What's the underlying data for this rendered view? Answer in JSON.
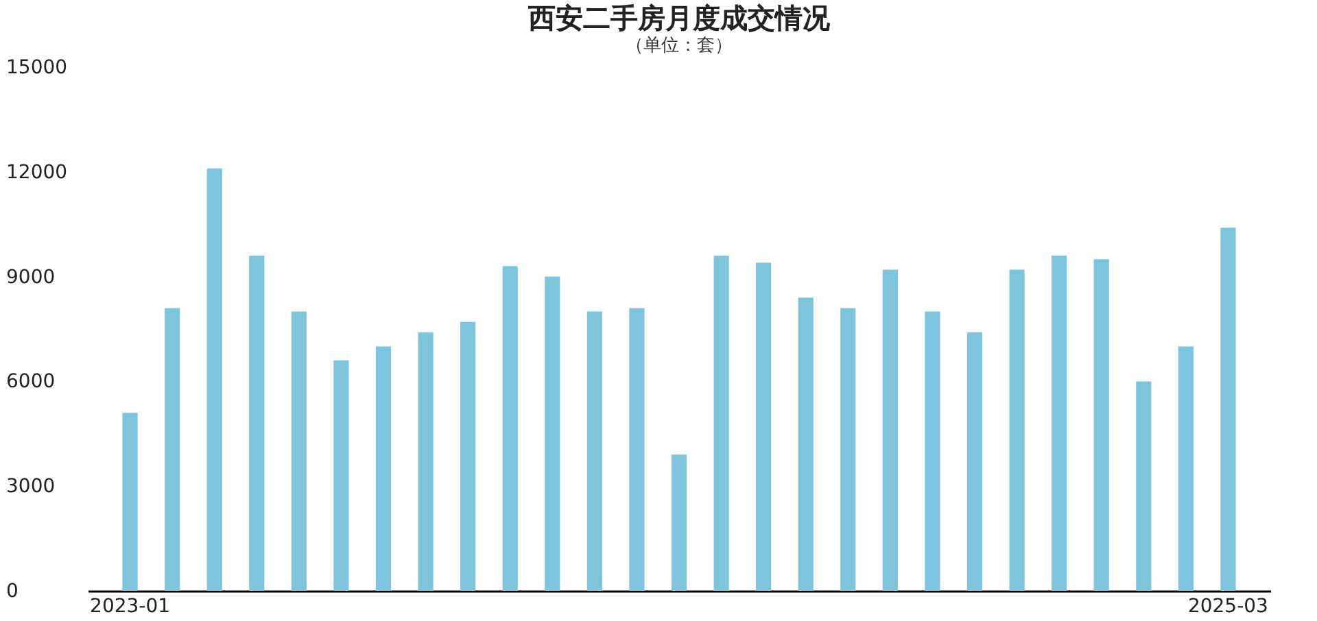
{
  "chart_data": {
    "type": "bar",
    "title": "西安二手房月度成交情况",
    "subtitle": "（单位：套）",
    "categories": [
      "2023-01",
      null,
      null,
      null,
      null,
      null,
      null,
      null,
      null,
      null,
      null,
      null,
      null,
      null,
      null,
      null,
      null,
      null,
      null,
      null,
      null,
      null,
      null,
      null,
      null,
      null,
      "2025-03"
    ],
    "values": [
      5100,
      8100,
      12100,
      9600,
      8000,
      6600,
      7000,
      7400,
      7700,
      9300,
      9000,
      8000,
      8100,
      3900,
      9600,
      9400,
      8400,
      8100,
      9200,
      8000,
      7400,
      9200,
      9600,
      9500,
      6000,
      7000,
      10400
    ],
    "color": "#7ec4dc",
    "ylim": [
      0,
      15000
    ],
    "yticks": [
      0,
      3000,
      6000,
      9000,
      12000,
      15000
    ],
    "grid": false
  }
}
